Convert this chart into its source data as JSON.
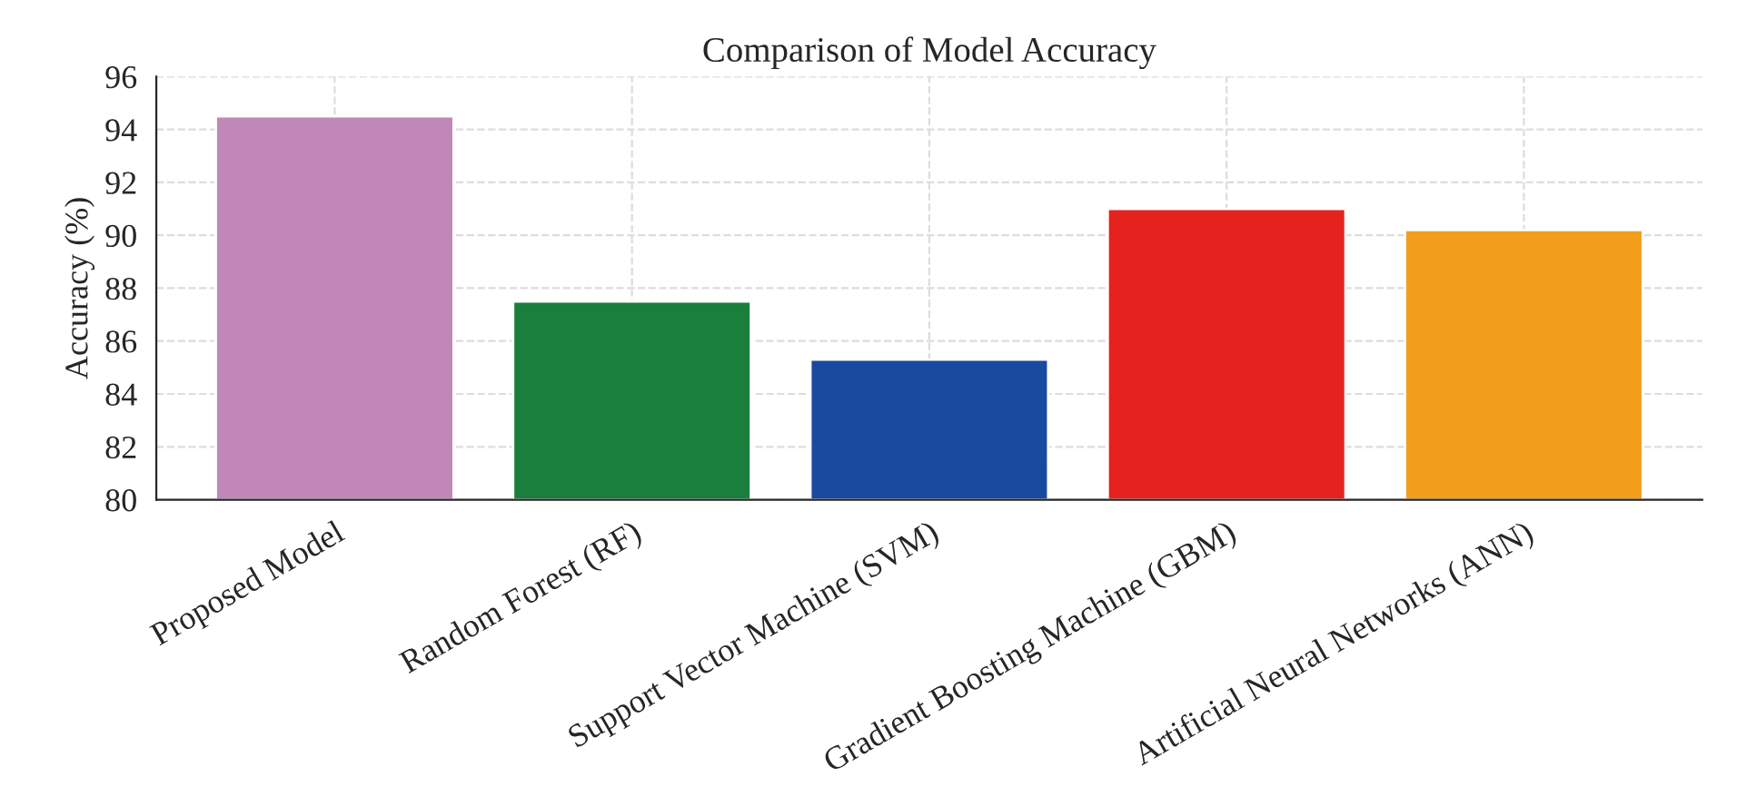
{
  "chart_data": {
    "type": "bar",
    "title": "Comparison of Model Accuracy",
    "ylabel": "Accuracy (%)",
    "categories": [
      "Proposed Model",
      "Random Forest (RF)",
      "Support Vector Machine (SVM)",
      "Gradient Boosting Machine (GBM)",
      "Artificial Neural Networks (ANN)"
    ],
    "values": [
      94.5,
      87.5,
      85.3,
      91.0,
      90.2
    ],
    "colors": [
      "#c087b8",
      "#1a7e3c",
      "#1a4aa0",
      "#e5221e",
      "#f29e1b"
    ],
    "ylim": [
      80,
      96
    ],
    "yticks": [
      80,
      82,
      84,
      86,
      88,
      90,
      92,
      94,
      96
    ],
    "grid": true
  }
}
